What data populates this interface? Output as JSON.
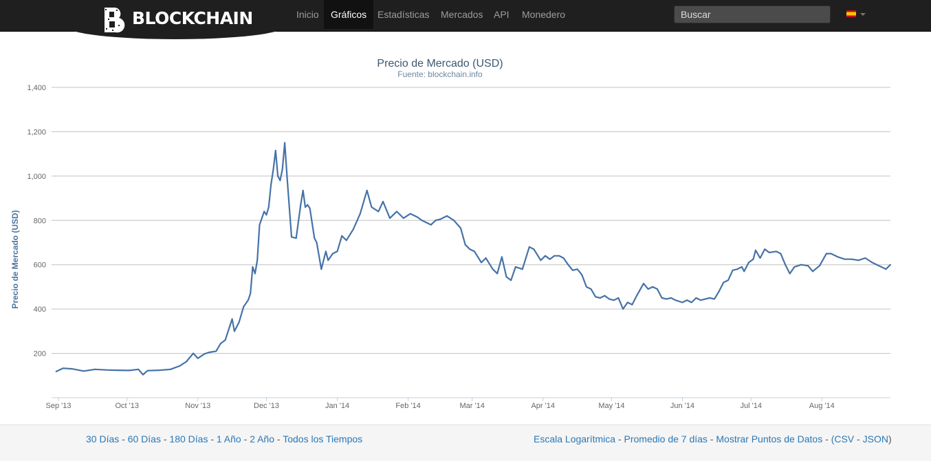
{
  "nav": {
    "brand": "BLOCKCHAIN",
    "items": [
      {
        "label": "Inicio",
        "active": false
      },
      {
        "label": "Gráficos",
        "active": true
      },
      {
        "label": "Estadísticas",
        "active": false
      },
      {
        "label": "Mercados",
        "active": false
      },
      {
        "label": "API",
        "active": false
      },
      {
        "label": "Monedero",
        "active": false
      }
    ],
    "search_placeholder": "Buscar",
    "language_flag": "spain-flag-icon"
  },
  "colors": {
    "navbar": "#1f1f1f",
    "line": "#4572a7",
    "grid": "#c0c0c0",
    "link": "#2a77b5"
  },
  "chart_data": {
    "type": "line",
    "title": "Precio de Mercado (USD)",
    "subtitle": "Fuente: blockchain.info",
    "xlabel": "",
    "ylabel": "Precio de Mercado (USD)",
    "ylim": [
      0,
      1400
    ],
    "yticks": [
      200,
      400,
      600,
      800,
      1000,
      1200,
      1400
    ],
    "ytick_labels": [
      "200",
      "400",
      "600",
      "800",
      "1,000",
      "1,200",
      "1,400"
    ],
    "xlim": [
      "2013-08-29",
      "2014-08-31"
    ],
    "xticks": [
      {
        "label": "Sep '13",
        "date": "2013-09-01"
      },
      {
        "label": "Oct '13",
        "date": "2013-10-01"
      },
      {
        "label": "Nov '13",
        "date": "2013-11-01"
      },
      {
        "label": "Dec '13",
        "date": "2013-12-01"
      },
      {
        "label": "Jan '14",
        "date": "2014-01-01"
      },
      {
        "label": "Feb '14",
        "date": "2014-02-01"
      },
      {
        "label": "Mar '14",
        "date": "2014-03-01"
      },
      {
        "label": "Apr '14",
        "date": "2014-04-01"
      },
      {
        "label": "May '14",
        "date": "2014-05-01"
      },
      {
        "label": "Jun '14",
        "date": "2014-06-01"
      },
      {
        "label": "Jul '14",
        "date": "2014-07-01"
      },
      {
        "label": "Aug '14",
        "date": "2014-08-01"
      }
    ],
    "grid": true,
    "legend": "none",
    "series": [
      {
        "points": [
          [
            "2013-08-31",
            118
          ],
          [
            "2013-09-03",
            133
          ],
          [
            "2013-09-07",
            130
          ],
          [
            "2013-09-12",
            120
          ],
          [
            "2013-09-17",
            128
          ],
          [
            "2013-09-22",
            125
          ],
          [
            "2013-09-27",
            124
          ],
          [
            "2013-10-02",
            123
          ],
          [
            "2013-10-06",
            128
          ],
          [
            "2013-10-08",
            104
          ],
          [
            "2013-10-10",
            122
          ],
          [
            "2013-10-15",
            124
          ],
          [
            "2013-10-20",
            128
          ],
          [
            "2013-10-24",
            143
          ],
          [
            "2013-10-27",
            163
          ],
          [
            "2013-10-30",
            200
          ],
          [
            "2013-11-01",
            178
          ],
          [
            "2013-11-04",
            198
          ],
          [
            "2013-11-06",
            205
          ],
          [
            "2013-11-09",
            210
          ],
          [
            "2013-11-11",
            245
          ],
          [
            "2013-11-13",
            260
          ],
          [
            "2013-11-16",
            355
          ],
          [
            "2013-11-17",
            300
          ],
          [
            "2013-11-19",
            340
          ],
          [
            "2013-11-21",
            410
          ],
          [
            "2013-11-23",
            440
          ],
          [
            "2013-11-24",
            470
          ],
          [
            "2013-11-25",
            590
          ],
          [
            "2013-11-26",
            560
          ],
          [
            "2013-11-27",
            620
          ],
          [
            "2013-11-28",
            780
          ],
          [
            "2013-11-30",
            840
          ],
          [
            "2013-12-01",
            825
          ],
          [
            "2013-12-02",
            860
          ],
          [
            "2013-12-03",
            960
          ],
          [
            "2013-12-04",
            1030
          ],
          [
            "2013-12-05",
            1115
          ],
          [
            "2013-12-06",
            1000
          ],
          [
            "2013-12-07",
            980
          ],
          [
            "2013-12-08",
            1030
          ],
          [
            "2013-12-09",
            1150
          ],
          [
            "2013-12-10",
            1000
          ],
          [
            "2013-12-12",
            725
          ],
          [
            "2013-12-14",
            720
          ],
          [
            "2013-12-16",
            870
          ],
          [
            "2013-12-17",
            935
          ],
          [
            "2013-12-18",
            860
          ],
          [
            "2013-12-19",
            870
          ],
          [
            "2013-12-20",
            855
          ],
          [
            "2013-12-22",
            720
          ],
          [
            "2013-12-23",
            700
          ],
          [
            "2013-12-25",
            580
          ],
          [
            "2013-12-27",
            660
          ],
          [
            "2013-12-28",
            620
          ],
          [
            "2013-12-30",
            650
          ],
          [
            "2014-01-01",
            660
          ],
          [
            "2014-01-03",
            730
          ],
          [
            "2014-01-05",
            710
          ],
          [
            "2014-01-08",
            760
          ],
          [
            "2014-01-11",
            830
          ],
          [
            "2014-01-14",
            935
          ],
          [
            "2014-01-16",
            860
          ],
          [
            "2014-01-19",
            840
          ],
          [
            "2014-01-21",
            885
          ],
          [
            "2014-01-24",
            810
          ],
          [
            "2014-01-27",
            840
          ],
          [
            "2014-01-30",
            810
          ],
          [
            "2014-02-02",
            830
          ],
          [
            "2014-02-05",
            815
          ],
          [
            "2014-02-07",
            800
          ],
          [
            "2014-02-09",
            790
          ],
          [
            "2014-02-11",
            780
          ],
          [
            "2014-02-13",
            800
          ],
          [
            "2014-02-15",
            805
          ],
          [
            "2014-02-18",
            820
          ],
          [
            "2014-02-21",
            800
          ],
          [
            "2014-02-24",
            765
          ],
          [
            "2014-02-26",
            690
          ],
          [
            "2014-02-28",
            670
          ],
          [
            "2014-03-02",
            660
          ],
          [
            "2014-03-05",
            610
          ],
          [
            "2014-03-07",
            630
          ],
          [
            "2014-03-10",
            580
          ],
          [
            "2014-03-12",
            560
          ],
          [
            "2014-03-14",
            635
          ],
          [
            "2014-03-16",
            545
          ],
          [
            "2014-03-18",
            530
          ],
          [
            "2014-03-20",
            590
          ],
          [
            "2014-03-23",
            580
          ],
          [
            "2014-03-26",
            680
          ],
          [
            "2014-03-28",
            670
          ],
          [
            "2014-03-31",
            620
          ],
          [
            "2014-04-02",
            640
          ],
          [
            "2014-04-04",
            625
          ],
          [
            "2014-04-06",
            640
          ],
          [
            "2014-04-08",
            640
          ],
          [
            "2014-04-10",
            630
          ],
          [
            "2014-04-12",
            600
          ],
          [
            "2014-04-14",
            575
          ],
          [
            "2014-04-16",
            580
          ],
          [
            "2014-04-18",
            555
          ],
          [
            "2014-04-20",
            500
          ],
          [
            "2014-04-22",
            490
          ],
          [
            "2014-04-24",
            455
          ],
          [
            "2014-04-26",
            450
          ],
          [
            "2014-04-28",
            460
          ],
          [
            "2014-04-30",
            445
          ],
          [
            "2014-05-02",
            440
          ],
          [
            "2014-05-04",
            450
          ],
          [
            "2014-05-06",
            400
          ],
          [
            "2014-05-08",
            430
          ],
          [
            "2014-05-10",
            420
          ],
          [
            "2014-05-12",
            460
          ],
          [
            "2014-05-15",
            515
          ],
          [
            "2014-05-17",
            490
          ],
          [
            "2014-05-19",
            500
          ],
          [
            "2014-05-21",
            490
          ],
          [
            "2014-05-23",
            450
          ],
          [
            "2014-05-25",
            445
          ],
          [
            "2014-05-27",
            450
          ],
          [
            "2014-05-29",
            440
          ],
          [
            "2014-06-01",
            430
          ],
          [
            "2014-06-03",
            440
          ],
          [
            "2014-06-05",
            430
          ],
          [
            "2014-06-07",
            450
          ],
          [
            "2014-06-09",
            440
          ],
          [
            "2014-06-11",
            445
          ],
          [
            "2014-06-13",
            450
          ],
          [
            "2014-06-15",
            445
          ],
          [
            "2014-06-17",
            480
          ],
          [
            "2014-06-19",
            520
          ],
          [
            "2014-06-21",
            530
          ],
          [
            "2014-06-23",
            575
          ],
          [
            "2014-06-25",
            580
          ],
          [
            "2014-06-27",
            590
          ],
          [
            "2014-06-28",
            570
          ],
          [
            "2014-06-30",
            610
          ],
          [
            "2014-07-02",
            625
          ],
          [
            "2014-07-03",
            665
          ],
          [
            "2014-07-05",
            630
          ],
          [
            "2014-07-07",
            670
          ],
          [
            "2014-07-09",
            655
          ],
          [
            "2014-07-12",
            660
          ],
          [
            "2014-07-14",
            650
          ],
          [
            "2014-07-16",
            600
          ],
          [
            "2014-07-18",
            560
          ],
          [
            "2014-07-20",
            590
          ],
          [
            "2014-07-23",
            600
          ],
          [
            "2014-07-26",
            595
          ],
          [
            "2014-07-28",
            570
          ],
          [
            "2014-07-31",
            595
          ],
          [
            "2014-08-03",
            650
          ],
          [
            "2014-08-05",
            650
          ],
          [
            "2014-08-08",
            635
          ],
          [
            "2014-08-11",
            625
          ],
          [
            "2014-08-14",
            625
          ],
          [
            "2014-08-17",
            620
          ],
          [
            "2014-08-20",
            630
          ],
          [
            "2014-08-23",
            610
          ],
          [
            "2014-08-25",
            600
          ],
          [
            "2014-08-27",
            590
          ],
          [
            "2014-08-29",
            580
          ],
          [
            "2014-08-31",
            600
          ]
        ]
      }
    ]
  },
  "footer": {
    "left_links": [
      "30 Días",
      "60 Días",
      "180 Días",
      "1 Año",
      "2 Año",
      "Todos los Tiempos"
    ],
    "right_links": [
      "Escala Logarítmica",
      "Promedio de 7 días",
      "Mostrar Puntos de Datos"
    ],
    "export_links": [
      "CSV",
      "JSON"
    ]
  }
}
